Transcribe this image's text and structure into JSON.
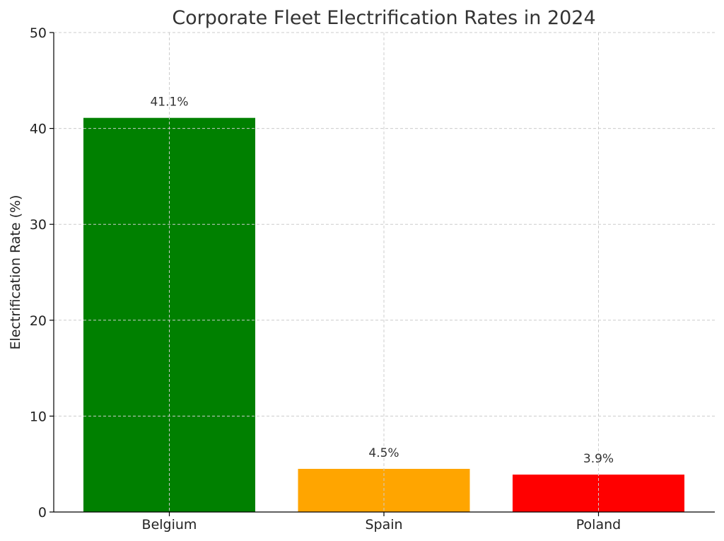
{
  "chart_data": {
    "type": "bar",
    "title": "Corporate Fleet Electrification Rates in 2024",
    "xlabel": "",
    "ylabel": "Electrification Rate (%)",
    "categories": [
      "Belgium",
      "Spain",
      "Poland"
    ],
    "values": [
      41.1,
      4.5,
      3.9
    ],
    "data_labels": [
      "41.1%",
      "4.5%",
      "3.9%"
    ],
    "colors": [
      "#008000",
      "#FFA500",
      "#FF0000"
    ],
    "ylim": [
      0,
      50
    ],
    "yticks": [
      0,
      10,
      20,
      30,
      40,
      50
    ],
    "grid": true,
    "legend": "none"
  }
}
